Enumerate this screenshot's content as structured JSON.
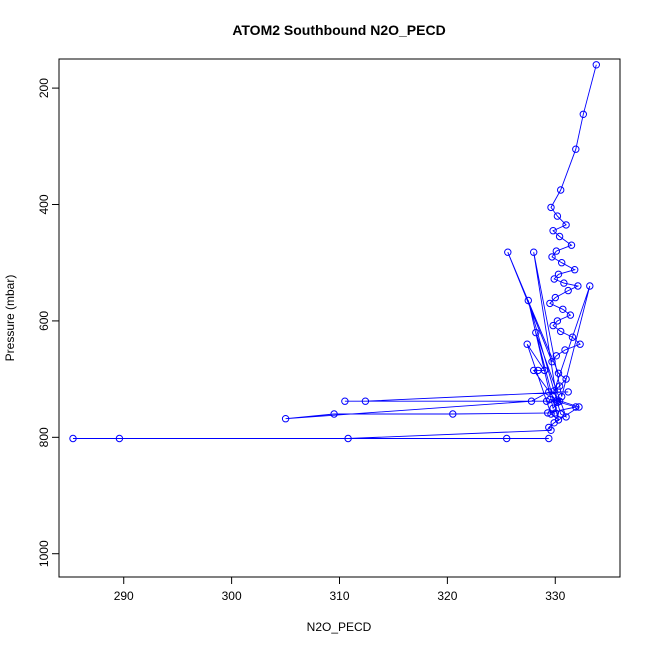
{
  "chart_data": {
    "type": "line",
    "title": "ATOM2 Southbound N2O_PECD",
    "xlabel": "N2O_PECD",
    "ylabel": "Pressure (mbar)",
    "xlim": [
      284,
      336
    ],
    "ylim": [
      1040,
      150
    ],
    "y_reversed": true,
    "grid": false,
    "legend": "none",
    "series_color": "#0000ff",
    "xticks": [
      290,
      300,
      310,
      320,
      330
    ],
    "yticks": [
      200,
      400,
      600,
      800,
      1000
    ],
    "series": [
      {
        "x": [
          333.8,
          332.6,
          331.9,
          330.5,
          329.6,
          330.2,
          331.0,
          329.8,
          330.4,
          331.5,
          330.1,
          329.7,
          330.6,
          331.8,
          330.3,
          329.9,
          330.8,
          332.1,
          331.2,
          330.0,
          329.5,
          330.7,
          331.4,
          330.2,
          329.8,
          330.5,
          331.6,
          332.3,
          330.9,
          330.1,
          329.7,
          325.6,
          330.3,
          331.0,
          330.4,
          329.9,
          333.2,
          330.6,
          328.0,
          330.2,
          329.8,
          327.5,
          330.5,
          331.0,
          328.2,
          330.3,
          329.6,
          327.4,
          329.0,
          328.4,
          328.0,
          330.1,
          329.2,
          310.5,
          330.4,
          312.4,
          331.2,
          329.4,
          327.8,
          305.0,
          309.5,
          320.5,
          330.0,
          329.3,
          331.9,
          329.5,
          330.2,
          332.2,
          329.9,
          329.4,
          329.6,
          310.8,
          325.5,
          329.4,
          285.3,
          289.6
        ],
        "y": [
          160,
          245,
          305,
          375,
          405,
          420,
          435,
          445,
          455,
          470,
          480,
          490,
          500,
          512,
          520,
          528,
          535,
          540,
          548,
          560,
          570,
          580,
          590,
          600,
          608,
          618,
          628,
          640,
          650,
          660,
          670,
          482,
          690,
          700,
          712,
          720,
          540,
          730,
          482,
          740,
          750,
          565,
          760,
          765,
          620,
          770,
          760,
          640,
          685,
          685,
          685,
          738,
          738,
          738,
          738,
          738,
          722,
          722,
          738,
          768,
          760,
          760,
          758,
          758,
          748,
          735,
          736,
          748,
          775,
          783,
          788,
          802,
          802,
          802,
          802,
          802
        ]
      }
    ]
  }
}
